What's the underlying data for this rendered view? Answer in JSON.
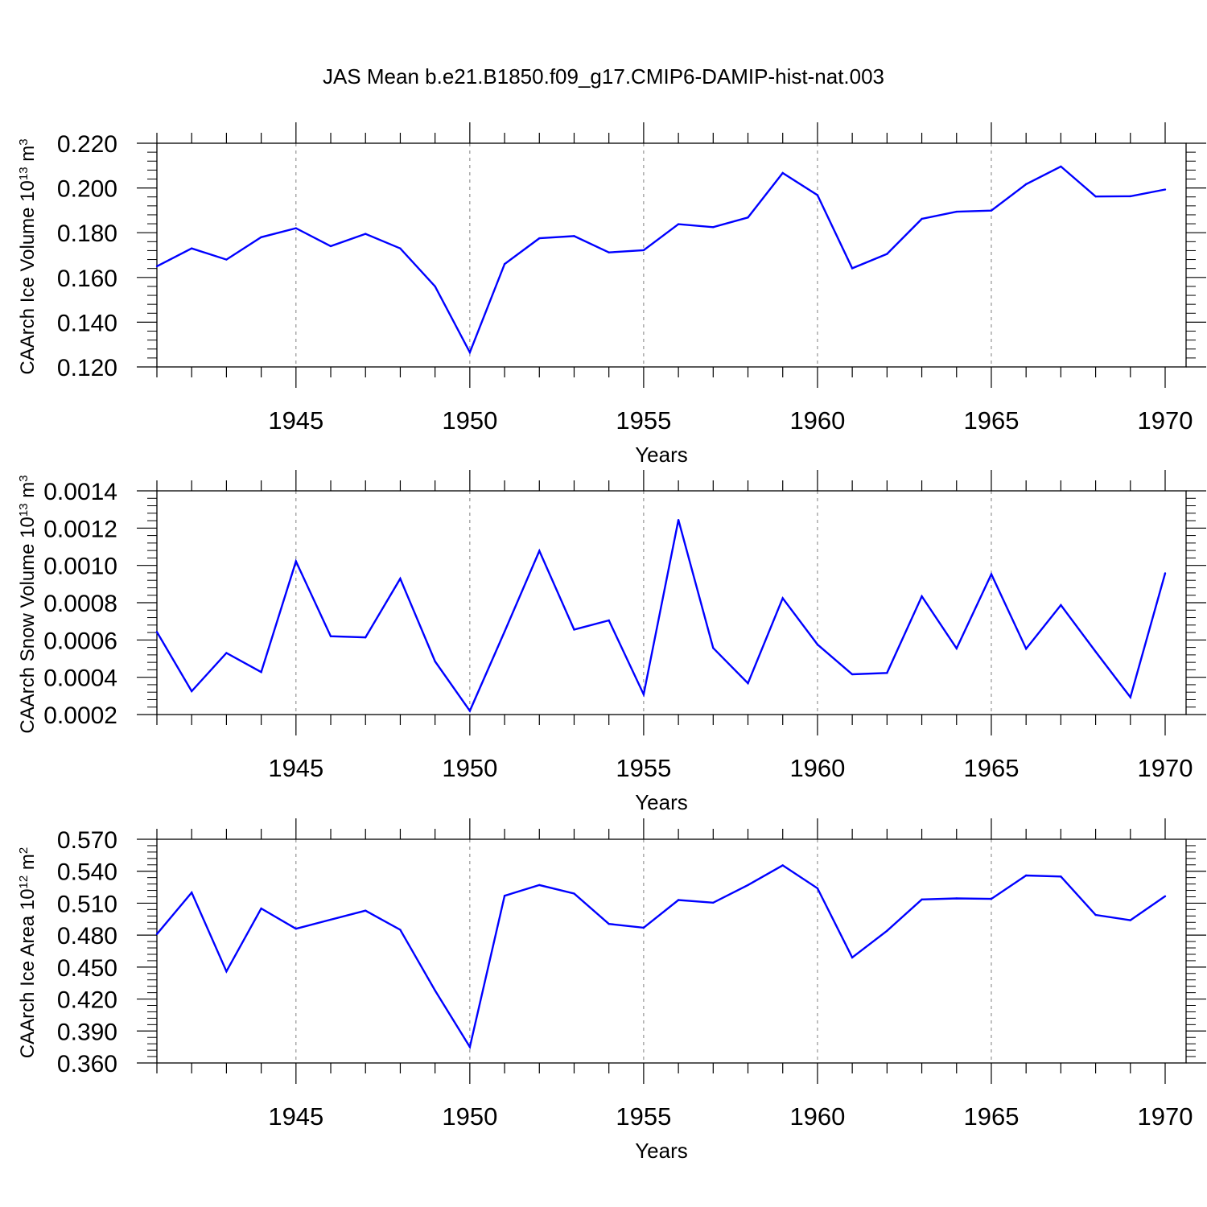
{
  "title": "JAS Mean b.e21.B1850.f09_g17.CMIP6-DAMIP-hist-nat.003",
  "colors": {
    "line": "#0000ff",
    "axis": "#000000",
    "grid": "#7f7f7f"
  },
  "chart_data": [
    {
      "type": "line",
      "xlabel": "Years",
      "ylabel": {
        "text": "CAArch Ice Volume 10",
        "exp": "13",
        "unit": " m",
        "unit_exp": "3"
      },
      "xlim": [
        1941,
        1970
      ],
      "ylim": [
        0.12,
        0.22
      ],
      "xticks": [
        1945,
        1950,
        1955,
        1960,
        1965,
        1970
      ],
      "xtick_labels": [
        "1945",
        "1950",
        "1955",
        "1960",
        "1965",
        "1970"
      ],
      "yticks": [
        0.12,
        0.14,
        0.16,
        0.18,
        0.2,
        0.22
      ],
      "ytick_labels": [
        "0.120",
        "0.140",
        "0.160",
        "0.180",
        "0.200",
        "0.220"
      ],
      "grid": "vertical dashed at major x ticks",
      "x": [
        1941,
        1942,
        1943,
        1944,
        1945,
        1946,
        1947,
        1948,
        1949,
        1950,
        1951,
        1952,
        1953,
        1954,
        1955,
        1956,
        1957,
        1958,
        1959,
        1960,
        1961,
        1962,
        1963,
        1964,
        1965,
        1966,
        1967,
        1968,
        1969,
        1970
      ],
      "series": [
        {
          "values": [
            0.165,
            0.173,
            0.168,
            0.178,
            0.182,
            0.174,
            0.1795,
            0.173,
            0.156,
            0.1265,
            0.166,
            0.1775,
            0.1785,
            0.1712,
            0.1722,
            0.1838,
            0.1825,
            0.1868,
            0.2067,
            0.1968,
            0.1641,
            0.1705,
            0.1862,
            0.1894,
            0.1899,
            0.2017,
            0.2096,
            0.1962,
            0.1963,
            0.1993
          ]
        }
      ]
    },
    {
      "type": "line",
      "xlabel": "Years",
      "ylabel": {
        "text": "CAArch Snow Volume 10",
        "exp": "13",
        "unit": " m",
        "unit_exp": "3"
      },
      "xlim": [
        1941,
        1970
      ],
      "ylim": [
        0.0002,
        0.0014
      ],
      "xticks": [
        1945,
        1950,
        1955,
        1960,
        1965,
        1970
      ],
      "xtick_labels": [
        "1945",
        "1950",
        "1955",
        "1960",
        "1965",
        "1970"
      ],
      "yticks": [
        0.0002,
        0.0004,
        0.0006,
        0.0008,
        0.001,
        0.0012,
        0.0014
      ],
      "ytick_labels": [
        "0.0002",
        "0.0004",
        "0.0006",
        "0.0008",
        "0.0010",
        "0.0012",
        "0.0014"
      ],
      "grid": "vertical dashed at major x ticks",
      "x": [
        1941,
        1942,
        1943,
        1944,
        1945,
        1946,
        1947,
        1948,
        1949,
        1950,
        1951,
        1952,
        1953,
        1954,
        1955,
        1956,
        1957,
        1958,
        1959,
        1960,
        1961,
        1962,
        1963,
        1964,
        1965,
        1966,
        1967,
        1968,
        1969,
        1970
      ],
      "series": [
        {
          "values": [
            0.000643,
            0.000325,
            0.00053,
            0.000428,
            0.001022,
            0.00062,
            0.000614,
            0.000929,
            0.000485,
            0.00022,
            0.000645,
            0.001078,
            0.000656,
            0.000705,
            0.000308,
            0.001244,
            0.000557,
            0.000368,
            0.000824,
            0.000576,
            0.000416,
            0.000423,
            0.000834,
            0.000555,
            0.000953,
            0.000553,
            0.000787,
            0.000537,
            0.000293,
            0.000958
          ]
        }
      ]
    },
    {
      "type": "line",
      "xlabel": "Years",
      "ylabel": {
        "text": "CAArch Ice Area 10",
        "exp": "12",
        "unit": " m",
        "unit_exp": "2"
      },
      "xlim": [
        1941,
        1970
      ],
      "ylim": [
        0.36,
        0.57
      ],
      "xticks": [
        1945,
        1950,
        1955,
        1960,
        1965,
        1970
      ],
      "xtick_labels": [
        "1945",
        "1950",
        "1955",
        "1960",
        "1965",
        "1970"
      ],
      "yticks": [
        0.36,
        0.39,
        0.42,
        0.45,
        0.48,
        0.51,
        0.54,
        0.57
      ],
      "ytick_labels": [
        "0.360",
        "0.390",
        "0.420",
        "0.450",
        "0.480",
        "0.510",
        "0.540",
        "0.570"
      ],
      "grid": "vertical dashed at major x ticks",
      "x": [
        1941,
        1942,
        1943,
        1944,
        1945,
        1946,
        1947,
        1948,
        1949,
        1950,
        1951,
        1952,
        1953,
        1954,
        1955,
        1956,
        1957,
        1958,
        1959,
        1960,
        1961,
        1962,
        1963,
        1964,
        1965,
        1966,
        1967,
        1968,
        1969,
        1970
      ],
      "series": [
        {
          "values": [
            0.481,
            0.52,
            0.446,
            0.505,
            0.486,
            0.4945,
            0.503,
            0.485,
            0.428,
            0.375,
            0.517,
            0.527,
            0.519,
            0.4905,
            0.487,
            0.513,
            0.5105,
            0.527,
            0.5455,
            0.524,
            0.459,
            0.484,
            0.5135,
            0.5145,
            0.514,
            0.536,
            0.535,
            0.499,
            0.494,
            0.5165
          ]
        }
      ]
    }
  ]
}
